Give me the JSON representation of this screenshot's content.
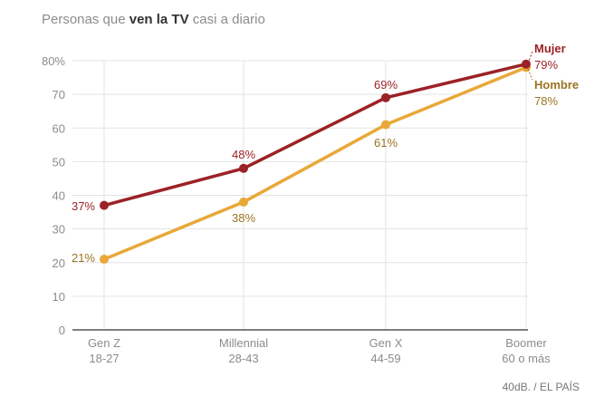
{
  "title": {
    "prefix": "Personas que ",
    "bold": "ven la TV",
    "suffix": " casi a diario"
  },
  "source": "40dB. / EL PAÍS",
  "colors": {
    "mujer": "#9b2226",
    "hombre": "#e8a838",
    "grid": "#e3e3e3",
    "axis_text": "#8c8c8c",
    "baseline": "#333333"
  },
  "chart_data": {
    "type": "line",
    "title": "Personas que ven la TV casi a diario",
    "xlabel": "",
    "ylabel": "",
    "categories": [
      {
        "name": "Gen Z",
        "range": "18-27"
      },
      {
        "name": "Millennial",
        "range": "28-43"
      },
      {
        "name": "Gen X",
        "range": "44-59"
      },
      {
        "name": "Boomer",
        "range": "60 o más"
      }
    ],
    "ylim": [
      0,
      80
    ],
    "yticks": [
      0,
      10,
      20,
      30,
      40,
      50,
      60,
      70,
      80
    ],
    "ytick_labels": [
      "0",
      "10",
      "20",
      "30",
      "40",
      "50",
      "60",
      "70",
      "80%"
    ],
    "grid": true,
    "series": [
      {
        "name": "Mujer",
        "color": "#9b2226",
        "values": [
          37,
          48,
          69,
          79
        ],
        "labels": [
          "37%",
          "48%",
          "69%",
          "79%"
        ]
      },
      {
        "name": "Hombre",
        "color": "#e8a838",
        "values": [
          21,
          38,
          61,
          78
        ],
        "labels": [
          "21%",
          "38%",
          "61%",
          "78%"
        ]
      }
    ]
  }
}
